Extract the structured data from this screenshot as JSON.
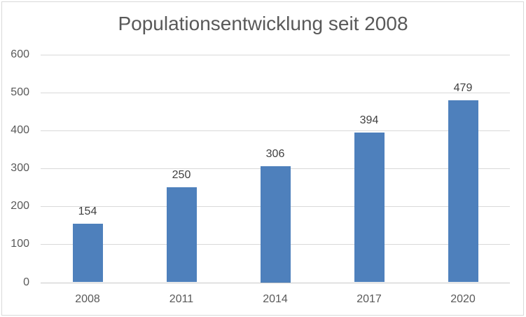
{
  "chart_data": {
    "type": "bar",
    "title": "Populationsentwicklung seit 2008",
    "categories": [
      "2008",
      "2011",
      "2014",
      "2017",
      "2020"
    ],
    "values": [
      154,
      250,
      306,
      394,
      479
    ],
    "xlabel": "",
    "ylabel": "",
    "ylim": [
      0,
      600
    ],
    "ytick_step": 100,
    "ytick_labels": [
      "0",
      "100",
      "200",
      "300",
      "400",
      "500",
      "600"
    ],
    "grid": true,
    "legend": false,
    "show_data_labels": true,
    "colors": {
      "bar": "#4E80BC",
      "gridline": "#D9D9D9",
      "axis_line": "#C9C9C9",
      "title_text": "#595959",
      "axis_text": "#595959",
      "value_text": "#404040",
      "chart_border": "#D9D9D9",
      "background": "#FFFFFF"
    }
  }
}
